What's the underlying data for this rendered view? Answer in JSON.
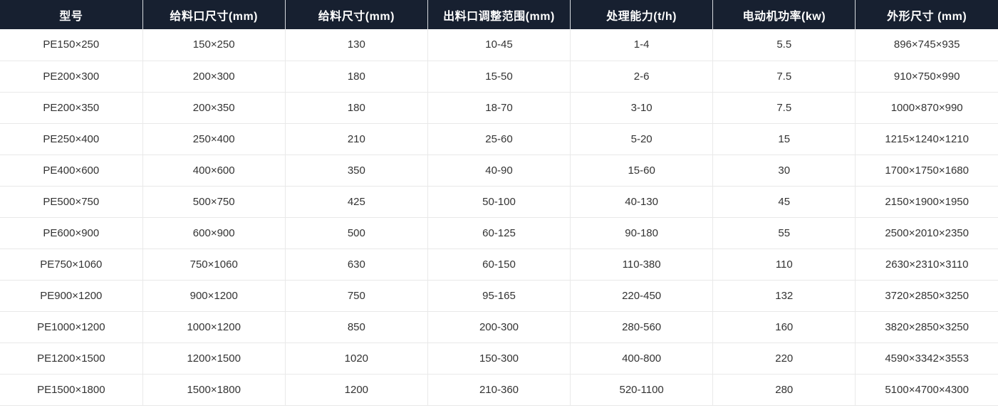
{
  "colors": {
    "header_background": "#172030",
    "header_text": "#ffffff",
    "body_text": "#333333",
    "grid_border": "#e9e9e9",
    "page_background": "#ffffff"
  },
  "table": {
    "columns": [
      "型号",
      "给料口尺寸(mm)",
      "给料尺寸(mm)",
      "出料口调整范围(mm)",
      "处理能力(t/h)",
      "电动机功率(kw)",
      "外形尺寸 (mm)"
    ],
    "rows": [
      [
        "PE150×250",
        "150×250",
        "130",
        "10-45",
        "1-4",
        "5.5",
        "896×745×935"
      ],
      [
        "PE200×300",
        "200×300",
        "180",
        "15-50",
        "2-6",
        "7.5",
        "910×750×990"
      ],
      [
        "PE200×350",
        "200×350",
        "180",
        "18-70",
        "3-10",
        "7.5",
        "1000×870×990"
      ],
      [
        "PE250×400",
        "250×400",
        "210",
        "25-60",
        "5-20",
        "15",
        "1215×1240×1210"
      ],
      [
        "PE400×600",
        "400×600",
        "350",
        "40-90",
        "15-60",
        "30",
        "1700×1750×1680"
      ],
      [
        "PE500×750",
        "500×750",
        "425",
        "50-100",
        "40-130",
        "45",
        "2150×1900×1950"
      ],
      [
        "PE600×900",
        "600×900",
        "500",
        "60-125",
        "90-180",
        "55",
        "2500×2010×2350"
      ],
      [
        "PE750×1060",
        "750×1060",
        "630",
        "60-150",
        "110-380",
        "110",
        "2630×2310×3110"
      ],
      [
        "PE900×1200",
        "900×1200",
        "750",
        "95-165",
        "220-450",
        "132",
        "3720×2850×3250"
      ],
      [
        "PE1000×1200",
        "1000×1200",
        "850",
        "200-300",
        "280-560",
        "160",
        "3820×2850×3250"
      ],
      [
        "PE1200×1500",
        "1200×1500",
        "1020",
        "150-300",
        "400-800",
        "220",
        "4590×3342×3553"
      ],
      [
        "PE1500×1800",
        "1500×1800",
        "1200",
        "210-360",
        "520-1100",
        "280",
        "5100×4700×4300"
      ]
    ],
    "column_keys": [
      "model",
      "feed-opening-size",
      "feed-size",
      "discharge-adjust-range",
      "processing-capacity",
      "motor-power",
      "overall-dimensions"
    ]
  }
}
